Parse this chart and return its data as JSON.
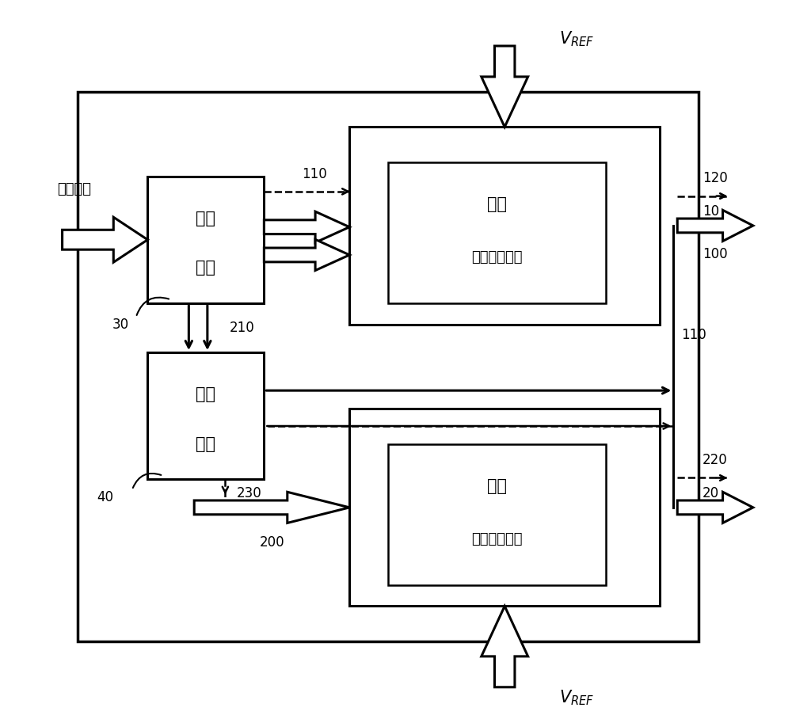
{
  "bg": "#ffffff",
  "lc": "#000000",
  "fw": 10.0,
  "fh": 9.08,
  "outer": [
    0.09,
    0.1,
    0.8,
    0.78
  ],
  "dac1_o": [
    0.44,
    0.55,
    0.4,
    0.28
  ],
  "dac1_i": [
    0.49,
    0.58,
    0.28,
    0.2
  ],
  "dac2_o": [
    0.44,
    0.15,
    0.4,
    0.28
  ],
  "dac2_i": [
    0.49,
    0.18,
    0.28,
    0.2
  ],
  "set_b": [
    0.18,
    0.58,
    0.15,
    0.18
  ],
  "conv_b": [
    0.18,
    0.33,
    0.15,
    0.18
  ],
  "labels": {
    "data_in": "数据输入",
    "set1": "设定",
    "set2": "模块",
    "conv1": "换算",
    "conv2": "模块",
    "dac1_1": "第一",
    "dac1_2": "数模转换单元",
    "dac2_1": "第二",
    "dac2_2": "数模转换单元",
    "n10": "10",
    "n20": "20",
    "n30": "30",
    "n40": "40",
    "n100": "100",
    "n110a": "110",
    "n110b": "110",
    "n120": "120",
    "n200": "200",
    "n210": "210",
    "n220": "220",
    "n230": "230"
  }
}
